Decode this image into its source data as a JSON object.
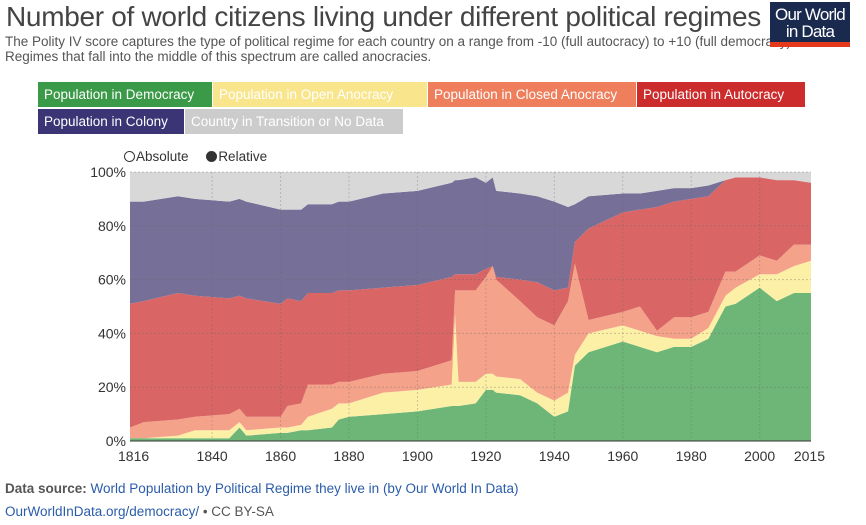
{
  "header": {
    "title": "Number of world citizens living under different political regimes",
    "subtitle": "The Polity IV score captures the type of political regime for each country on a range from -10 (full autocracy) to +10 (full democracy). Regimes that fall into the middle of this spectrum are called anocracies.",
    "logo_line1": "Our World",
    "logo_line2": "in Data"
  },
  "toggle": {
    "absolute": "Absolute",
    "relative": "Relative",
    "selected": "Relative"
  },
  "footer": {
    "source_label": "Data source:",
    "source_text": "World Population by Political Regime they live in (by Our World In Data)",
    "link": "OurWorldInData.org/democracy/",
    "license": " • CC BY-SA"
  },
  "chart_data": {
    "type": "area",
    "stacked": true,
    "mode": "relative",
    "ylim": [
      0,
      100
    ],
    "xlim": [
      1816,
      2015
    ],
    "xticks": [
      "1816",
      "1840",
      "1860",
      "1880",
      "1900",
      "1920",
      "1940",
      "1960",
      "1980",
      "2000",
      "2015"
    ],
    "yticks": [
      "0%",
      "20%",
      "40%",
      "60%",
      "80%",
      "100%"
    ],
    "grid": true,
    "legend_position": "top",
    "x": [
      1816,
      1820,
      1830,
      1835,
      1845,
      1848,
      1850,
      1860,
      1862,
      1866,
      1868,
      1875,
      1877,
      1880,
      1890,
      1900,
      1910,
      1911,
      1912,
      1917,
      1920,
      1922,
      1923,
      1930,
      1935,
      1940,
      1944,
      1946,
      1950,
      1960,
      1965,
      1970,
      1975,
      1980,
      1985,
      1990,
      1993,
      2000,
      2005,
      2010,
      2015
    ],
    "series": [
      {
        "name": "Population in Democracy",
        "legend_color": "#3a9a48",
        "fill": "#6db677",
        "values": [
          1,
          1,
          1,
          1,
          1,
          5,
          2,
          3,
          3,
          4,
          4,
          5,
          8,
          9,
          10,
          11,
          13,
          13,
          13,
          14,
          19,
          19,
          18,
          17,
          14,
          9,
          11,
          28,
          33,
          37,
          35,
          33,
          35,
          35,
          38,
          50,
          51,
          57,
          52,
          55,
          55
        ]
      },
      {
        "name": "Population in Open Anocracy",
        "legend_color": "#f9e58c",
        "fill": "#fcefa6",
        "values": [
          0,
          0,
          1,
          3,
          3,
          2,
          2,
          2,
          2,
          2,
          5,
          7,
          6,
          5,
          8,
          8,
          8,
          34,
          9,
          8,
          6,
          6,
          6,
          6,
          4,
          6,
          7,
          4,
          7,
          6,
          6,
          6,
          3,
          3,
          4,
          4,
          6,
          5,
          10,
          10,
          12
        ]
      },
      {
        "name": "Population in Closed Anocracy",
        "legend_color": "#ef7f5c",
        "fill": "#f4a38a",
        "values": [
          4,
          6,
          6,
          5,
          6,
          5,
          5,
          4,
          8,
          8,
          12,
          9,
          8,
          8,
          7,
          7,
          9,
          9,
          34,
          34,
          36,
          40,
          36,
          29,
          28,
          28,
          34,
          34,
          5,
          5,
          9,
          2,
          8,
          8,
          6,
          9,
          6,
          7,
          5,
          8,
          6
        ]
      },
      {
        "name": "Population in Autocracy",
        "legend_color": "#cc2c2c",
        "fill": "#d96565",
        "values": [
          46,
          45,
          47,
          45,
          43,
          42,
          44,
          42,
          40,
          38,
          34,
          34,
          34,
          34,
          32,
          32,
          31,
          6,
          6,
          6,
          3,
          0,
          1,
          8,
          13,
          13,
          5,
          8,
          34,
          37,
          36,
          46,
          43,
          44,
          43,
          34,
          35,
          29,
          30,
          24,
          23
        ]
      },
      {
        "name": "Population in Colony",
        "legend_color": "#3b3576",
        "fill": "#766f98",
        "values": [
          38,
          37,
          36,
          36,
          36,
          36,
          36,
          35,
          33,
          34,
          33,
          33,
          33,
          33,
          35,
          35,
          35,
          35,
          35,
          36,
          32,
          33,
          32,
          32,
          32,
          33,
          30,
          14,
          12,
          7,
          6,
          6,
          5,
          4,
          4,
          0,
          0,
          0,
          0,
          0,
          0
        ]
      },
      {
        "name": "Country in Transition or No Data",
        "legend_color": "#cccccc",
        "fill": "#d8d8d8",
        "values": [
          11,
          11,
          9,
          10,
          11,
          10,
          11,
          14,
          14,
          14,
          12,
          12,
          11,
          11,
          8,
          7,
          4,
          3,
          3,
          2,
          4,
          2,
          7,
          8,
          9,
          11,
          13,
          12,
          9,
          8,
          8,
          7,
          6,
          6,
          5,
          3,
          2,
          2,
          3,
          3,
          4
        ]
      }
    ]
  }
}
